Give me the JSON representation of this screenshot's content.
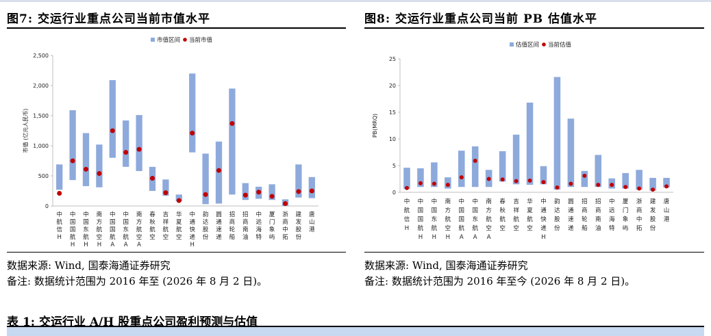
{
  "figures": {
    "left": {
      "title": "图7: 交运行业重点公司当前市值水平",
      "source": "数据来源: Wind, 国泰海通证券研究",
      "remark": "备注: 数据统计范围为 2016 年至 (2026 年 8 月 2 日)。"
    },
    "right": {
      "title": "图8: 交运行业重点公司当前 PB 估值水平",
      "source": "数据来源: Wind, 国泰海通证券研究",
      "remark": "备注: 数据统计范围为 2016 年至今 (2026 年 8 月 2 日)。"
    }
  },
  "table": {
    "title": "表 1: 交运行业 A/H 股重点公司盈利预测与估值"
  },
  "colors": {
    "range_bar": "#8eaadc",
    "current_dot": "#c00000",
    "axis": "#bfbfbf"
  },
  "chart_data": [
    {
      "type": "bar",
      "subtype": "floating-range-with-marker",
      "ylabel": "市值 (亿元人民币)",
      "ylim": [
        0,
        2500
      ],
      "yticks": [
        0,
        500,
        1000,
        1500,
        2000,
        2500
      ],
      "ytick_labels": [
        "0",
        "500",
        "1,000",
        "1,500",
        "2,000",
        "2,500"
      ],
      "legend": [
        "市值区间",
        "当前市值"
      ],
      "legend_position": "top-right",
      "grid": false,
      "categories": [
        "中航信H",
        "中国国航H",
        "中国东航H",
        "南方航空H",
        "中国国航A",
        "中国东航A",
        "南方航空A",
        "春秋航空",
        "吉祥航空",
        "华夏航空",
        "中通快递H",
        "韵达股份",
        "圆通速递",
        "招商轮船",
        "招商南油",
        "中远海特",
        "厦门象屿",
        "浙商中拓",
        "建发股份",
        "唐山港"
      ],
      "category_chars": [
        [
          "中",
          "航",
          "信",
          "H"
        ],
        [
          "中",
          "国",
          "国",
          "航",
          "H"
        ],
        [
          "中",
          "国",
          "东",
          "航",
          "H"
        ],
        [
          "南",
          "方",
          "航",
          "空",
          "H"
        ],
        [
          "中",
          "国",
          "国",
          "航",
          "A"
        ],
        [
          "中",
          "国",
          "东",
          "航",
          "A"
        ],
        [
          "南",
          "方",
          "航",
          "空",
          "A"
        ],
        [
          "春",
          "秋",
          "航",
          "空"
        ],
        [
          "吉",
          "祥",
          "航",
          "空"
        ],
        [
          "华",
          "夏",
          "航",
          "空"
        ],
        [
          "中",
          "通",
          "快",
          "递",
          "H"
        ],
        [
          "韵",
          "达",
          "股",
          "份"
        ],
        [
          "圆",
          "通",
          "速",
          "递"
        ],
        [
          "招",
          "商",
          "轮",
          "船"
        ],
        [
          "招",
          "商",
          "南",
          "油"
        ],
        [
          "中",
          "远",
          "海",
          "特"
        ],
        [
          "厦",
          "门",
          "象",
          "屿"
        ],
        [
          "浙",
          "商",
          "中",
          "拓"
        ],
        [
          "建",
          "发",
          "股",
          "份"
        ],
        [
          "唐",
          "山",
          "港"
        ]
      ],
      "series": [
        {
          "name": "市值区间",
          "low": [
            270,
            430,
            330,
            310,
            800,
            650,
            580,
            250,
            170,
            80,
            890,
            30,
            40,
            190,
            100,
            120,
            100,
            0,
            140,
            130
          ],
          "high": [
            690,
            1590,
            1210,
            1020,
            2090,
            1420,
            1510,
            650,
            440,
            190,
            2200,
            870,
            1070,
            1950,
            380,
            320,
            360,
            110,
            690,
            480
          ]
        },
        {
          "name": "当前市值",
          "values": [
            210,
            750,
            610,
            540,
            1250,
            890,
            940,
            460,
            220,
            90,
            1210,
            190,
            590,
            1370,
            180,
            230,
            160,
            40,
            240,
            250
          ]
        }
      ]
    },
    {
      "type": "bar",
      "subtype": "floating-range-with-marker",
      "ylabel": "PB(MRQ)",
      "ylim": [
        0,
        25
      ],
      "yticks": [
        0,
        5,
        10,
        15,
        20,
        25
      ],
      "ytick_labels": [
        "0",
        "5",
        "10",
        "15",
        "20",
        "25"
      ],
      "legend": [
        "估值区间",
        "当前估值"
      ],
      "legend_position": "top-right",
      "grid": false,
      "categories": [
        "中航信H",
        "中国国航H",
        "中国东航H",
        "南方航空H",
        "中国国航A",
        "中国东航A",
        "南方航空A",
        "春秋航空",
        "吉祥航空",
        "华夏航空",
        "中通快递H",
        "韵达股份",
        "圆通速递",
        "招商轮船",
        "招商南油",
        "中远海特",
        "厦门象屿",
        "浙商中拓",
        "建发股份",
        "唐山港"
      ],
      "category_chars": [
        [
          "中",
          "航",
          "信",
          "H"
        ],
        [
          "中",
          "国",
          "国",
          "航",
          "H"
        ],
        [
          "中",
          "国",
          "东",
          "航",
          "H"
        ],
        [
          "南",
          "方",
          "航",
          "空",
          "H"
        ],
        [
          "中",
          "国",
          "国",
          "航",
          "A"
        ],
        [
          "中",
          "国",
          "东",
          "航",
          "A"
        ],
        [
          "南",
          "方",
          "航",
          "空",
          "A"
        ],
        [
          "春",
          "秋",
          "航",
          "空"
        ],
        [
          "吉",
          "祥",
          "航",
          "空"
        ],
        [
          "华",
          "夏",
          "航",
          "空"
        ],
        [
          "中",
          "通",
          "快",
          "递",
          "H"
        ],
        [
          "韵",
          "达",
          "股",
          "份"
        ],
        [
          "圆",
          "通",
          "速",
          "递"
        ],
        [
          "招",
          "商",
          "轮",
          "船"
        ],
        [
          "招",
          "商",
          "南",
          "油"
        ],
        [
          "中",
          "远",
          "海",
          "特"
        ],
        [
          "厦",
          "门",
          "象",
          "屿"
        ],
        [
          "浙",
          "商",
          "中",
          "拓"
        ],
        [
          "建",
          "发",
          "股",
          "份"
        ],
        [
          "唐",
          "山",
          "港"
        ]
      ],
      "series": [
        {
          "name": "估值区间",
          "low": [
            0.6,
            1.0,
            1.0,
            0.7,
            1.0,
            1.0,
            1.0,
            2.0,
            1.5,
            1.4,
            1.5,
            0.5,
            1.0,
            1.0,
            1.0,
            0.7,
            0.7,
            0.5,
            0.3,
            0.9
          ],
          "high": [
            4.6,
            4.5,
            5.6,
            2.8,
            7.8,
            8.6,
            4.2,
            7.7,
            10.8,
            16.8,
            4.9,
            21.6,
            13.8,
            4.0,
            7.0,
            2.6,
            3.6,
            4.2,
            2.7,
            2.7
          ]
        },
        {
          "name": "当前估值",
          "values": [
            0.8,
            1.7,
            1.6,
            1.4,
            2.8,
            5.9,
            2.5,
            2.4,
            2.1,
            2.2,
            1.9,
            0.9,
            1.6,
            3.1,
            1.4,
            1.4,
            1.0,
            0.7,
            0.5,
            1.1
          ]
        }
      ]
    }
  ]
}
